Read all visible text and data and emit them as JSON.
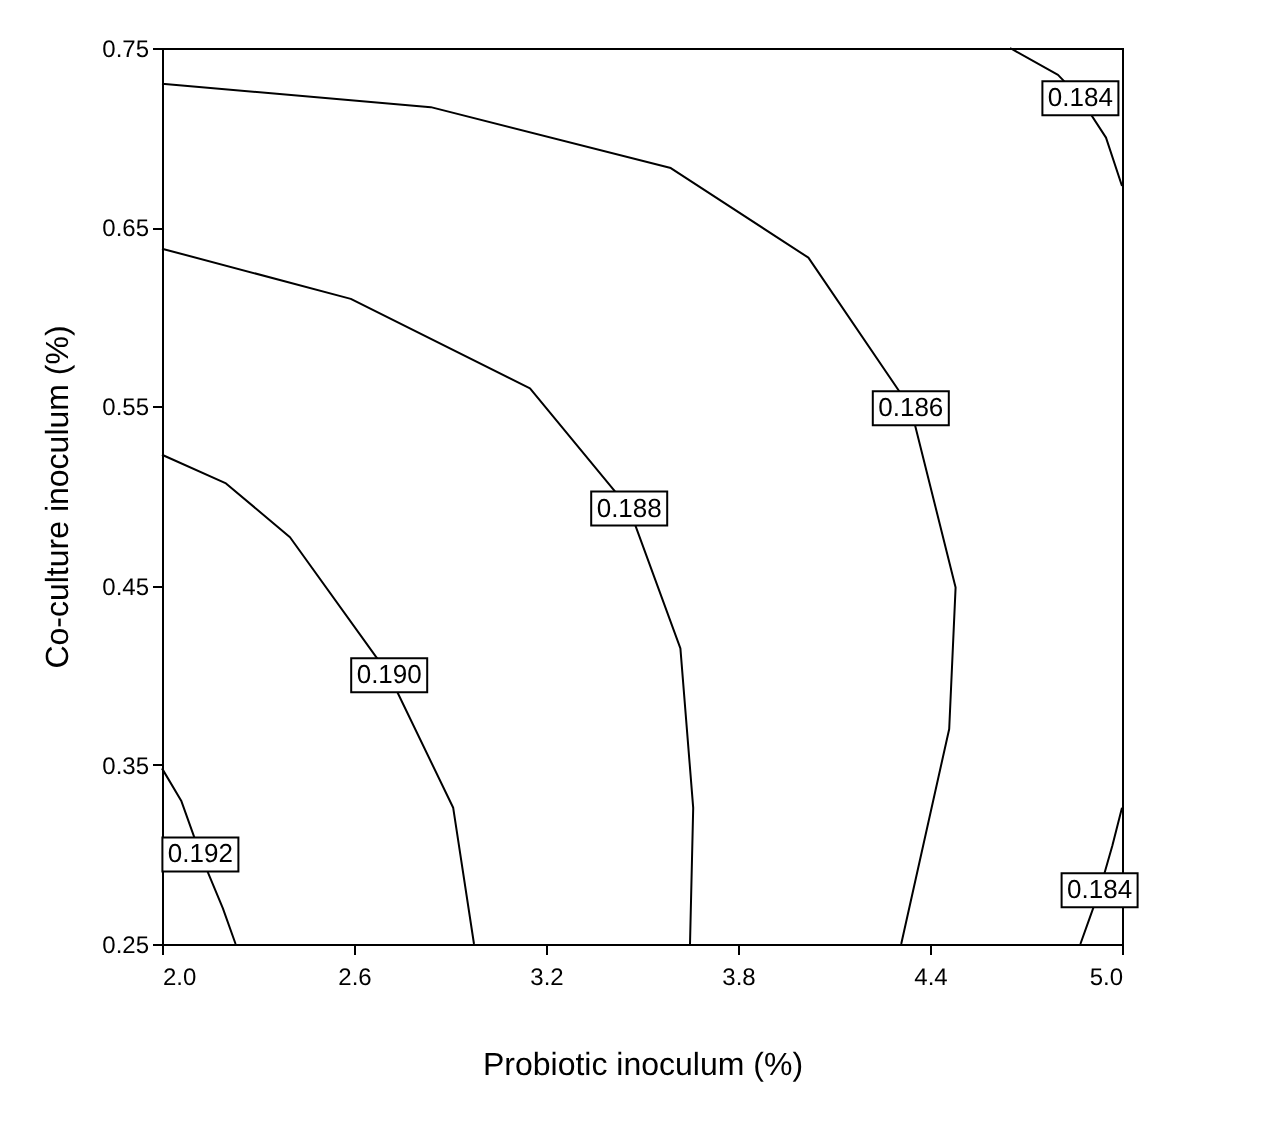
{
  "chart_data": {
    "type": "line",
    "xlabel": "Probiotic inoculum (%)",
    "ylabel": "Co-culture inoculum (%)",
    "xlim": [
      2.0,
      5.0
    ],
    "xticks": [
      {
        "value": 2.0,
        "label": "2.0"
      },
      2.6,
      3.2,
      3.8,
      4.4,
      {
        "value": 5.0,
        "label": "5.0"
      }
    ],
    "ylim": [
      0.25,
      0.75
    ],
    "yticks": [
      0.25,
      0.35,
      0.45,
      0.55,
      0.65,
      0.75
    ],
    "grid": false,
    "legend": false,
    "marker": "none",
    "line_style": "solid",
    "series": [
      {
        "name": "0.192",
        "color": "#000000",
        "x": [
          2.0,
          2.06,
          2.12,
          2.19,
          2.23
        ],
        "values": [
          0.348,
          0.33,
          0.3,
          0.27,
          0.25
        ]
      },
      {
        "name": "0.190",
        "color": "#000000",
        "x": [
          2.0,
          2.2,
          2.4,
          2.71,
          2.91,
          2.975
        ],
        "values": [
          0.523,
          0.507,
          0.477,
          0.4,
          0.326,
          0.25
        ]
      },
      {
        "name": "0.188",
        "color": "#000000",
        "x": [
          2.0,
          2.59,
          3.15,
          3.46,
          3.62,
          3.66,
          3.65
        ],
        "values": [
          0.638,
          0.61,
          0.56,
          0.493,
          0.415,
          0.326,
          0.25
        ]
      },
      {
        "name": "0.186",
        "color": "#000000",
        "x": [
          2.0,
          2.84,
          3.59,
          4.02,
          4.34,
          4.48,
          4.46,
          4.31
        ],
        "values": [
          0.73,
          0.717,
          0.683,
          0.633,
          0.549,
          0.449,
          0.37,
          0.25
        ]
      },
      {
        "name": "0.184",
        "color": "#000000",
        "x": [
          4.65,
          4.8,
          4.87,
          4.95,
          5.0
        ],
        "values": [
          0.75,
          0.735,
          0.722,
          0.7,
          0.673
        ]
      },
      {
        "name": "0.184",
        "color": "#000000",
        "x": [
          4.87,
          4.9,
          4.93,
          4.97,
          5.0
        ],
        "values": [
          0.25,
          0.265,
          0.28,
          0.305,
          0.326
        ]
      }
    ]
  }
}
